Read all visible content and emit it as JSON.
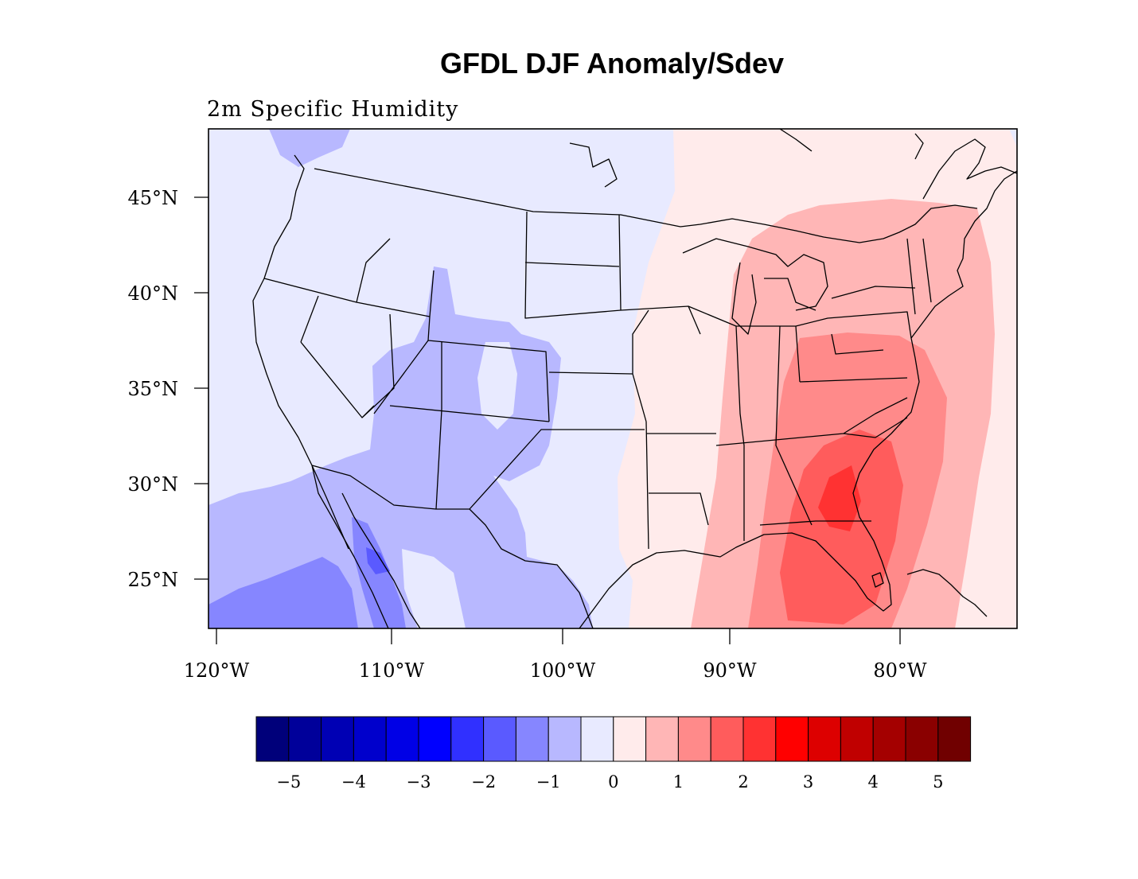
{
  "title": "GFDL DJF Anomaly/Sdev",
  "subtitle": "2m Specific Humidity",
  "lat_ticks": [
    "45°N",
    "40°N",
    "35°N",
    "30°N",
    "25°N"
  ],
  "lon_ticks": [
    "120°W",
    "110°W",
    "100°W",
    "90°W",
    "80°W"
  ],
  "colorbar": {
    "colors": [
      "#00007a",
      "#00009a",
      "#0000b4",
      "#0000cc",
      "#0000e6",
      "#0000ff",
      "#3030ff",
      "#5a5aff",
      "#8686ff",
      "#b8b8ff",
      "#e8eaff",
      "#ffebeb",
      "#ffb6b6",
      "#ff8a8a",
      "#ff5c5c",
      "#ff3232",
      "#ff0000",
      "#dd0000",
      "#c00000",
      "#a40000",
      "#8a0000",
      "#700000"
    ],
    "labels": [
      "−5",
      "−4",
      "−3",
      "−2",
      "−1",
      "0",
      "1",
      "2",
      "3",
      "4",
      "5"
    ]
  },
  "palette": {
    "bg_negative": "#e8eaff",
    "level_m1": "#b8b8ff",
    "level_m2": "#8686ff",
    "level_m3": "#5a5aff",
    "bg_positive": "#ffebeb",
    "level_p1": "#ffb6b6",
    "level_p2": "#ff8a8a",
    "level_p3": "#ff5c5c",
    "level_p4": "#ff3232"
  }
}
